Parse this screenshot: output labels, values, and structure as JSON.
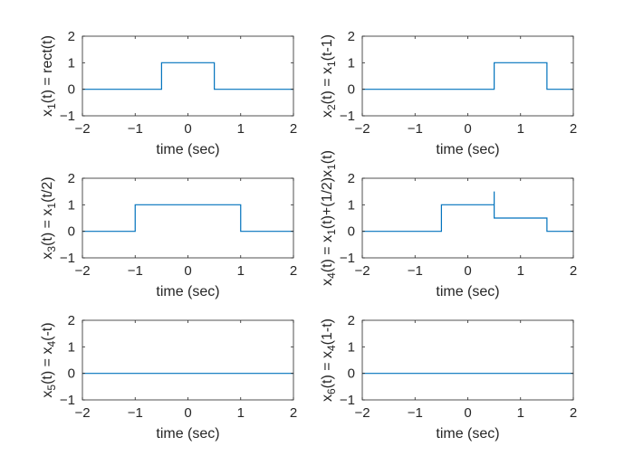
{
  "figure": {
    "background": "#ffffff",
    "line_color": "#0072BD",
    "axis_color": "#262626"
  },
  "chart_data": [
    {
      "type": "line",
      "title": "",
      "xlabel": "time (sec)",
      "ylabel_parts": [
        [
          "x"
        ],
        [
          "1",
          "sub"
        ],
        [
          "(t) = rect(t)"
        ]
      ],
      "xlim": [
        -2,
        2
      ],
      "ylim": [
        -1,
        2
      ],
      "xticks": [
        -2,
        -1,
        0,
        1,
        2
      ],
      "yticks": [
        -1,
        0,
        1,
        2
      ],
      "grid": false,
      "series": [
        {
          "x": [
            -2,
            -0.5,
            -0.5,
            0.5,
            0.5,
            2
          ],
          "y": [
            0,
            0,
            1,
            1,
            0,
            0
          ]
        }
      ]
    },
    {
      "type": "line",
      "title": "",
      "xlabel": "time (sec)",
      "ylabel_parts": [
        [
          "x"
        ],
        [
          "2",
          "sub"
        ],
        [
          "(t) = x"
        ],
        [
          "1",
          "sub"
        ],
        [
          "(t-1)"
        ]
      ],
      "xlim": [
        -2,
        2
      ],
      "ylim": [
        -1,
        2
      ],
      "xticks": [
        -2,
        -1,
        0,
        1,
        2
      ],
      "yticks": [
        -1,
        0,
        1,
        2
      ],
      "grid": false,
      "series": [
        {
          "x": [
            -2,
            0.5,
            0.5,
            1.5,
            1.5,
            2
          ],
          "y": [
            0,
            0,
            1,
            1,
            0,
            0
          ]
        }
      ]
    },
    {
      "type": "line",
      "title": "",
      "xlabel": "time (sec)",
      "ylabel_parts": [
        [
          "x"
        ],
        [
          "3",
          "sub"
        ],
        [
          "(t) = x"
        ],
        [
          "1",
          "sub"
        ],
        [
          "(t/2)"
        ]
      ],
      "xlim": [
        -2,
        2
      ],
      "ylim": [
        -1,
        2
      ],
      "xticks": [
        -2,
        -1,
        0,
        1,
        2
      ],
      "yticks": [
        -1,
        0,
        1,
        2
      ],
      "grid": false,
      "series": [
        {
          "x": [
            -2,
            -1,
            -1,
            1,
            1,
            2
          ],
          "y": [
            0,
            0,
            1,
            1,
            0,
            0
          ]
        }
      ]
    },
    {
      "type": "line",
      "title": "",
      "xlabel": "time (sec)",
      "ylabel_parts": [
        [
          "x"
        ],
        [
          "4",
          "sub"
        ],
        [
          "(t) = x"
        ],
        [
          "1",
          "sub"
        ],
        [
          "(t)+(1/2)x"
        ],
        [
          "1",
          "sub"
        ],
        [
          "(t)"
        ]
      ],
      "xlim": [
        -2,
        2
      ],
      "ylim": [
        -1,
        2
      ],
      "xticks": [
        -2,
        -1,
        0,
        1,
        2
      ],
      "yticks": [
        -1,
        0,
        1,
        2
      ],
      "grid": false,
      "series": [
        {
          "x": [
            -2,
            -0.5,
            -0.5,
            0.5,
            0.5,
            0.5,
            1.5,
            1.5,
            2
          ],
          "y": [
            0,
            0,
            1,
            1,
            1.5,
            0.5,
            0.5,
            0,
            0
          ]
        }
      ]
    },
    {
      "type": "line",
      "title": "",
      "xlabel": "time (sec)",
      "ylabel_parts": [
        [
          "x"
        ],
        [
          "5",
          "sub"
        ],
        [
          "(t) = x"
        ],
        [
          "4",
          "sub"
        ],
        [
          "(-t)"
        ]
      ],
      "xlim": [
        -2,
        2
      ],
      "ylim": [
        -1,
        2
      ],
      "xticks": [
        -2,
        -1,
        0,
        1,
        2
      ],
      "yticks": [
        -1,
        0,
        1,
        2
      ],
      "grid": false,
      "series": [
        {
          "x": [
            -2,
            2
          ],
          "y": [
            0,
            0
          ]
        }
      ]
    },
    {
      "type": "line",
      "title": "",
      "xlabel": "time (sec)",
      "ylabel_parts": [
        [
          "x"
        ],
        [
          "6",
          "sub"
        ],
        [
          "(t) = x"
        ],
        [
          "4",
          "sub"
        ],
        [
          "(1-t)"
        ]
      ],
      "xlim": [
        -2,
        2
      ],
      "ylim": [
        -1,
        2
      ],
      "xticks": [
        -2,
        -1,
        0,
        1,
        2
      ],
      "yticks": [
        -1,
        0,
        1,
        2
      ],
      "grid": false,
      "series": [
        {
          "x": [
            -2,
            2
          ],
          "y": [
            0,
            0
          ]
        }
      ]
    }
  ]
}
